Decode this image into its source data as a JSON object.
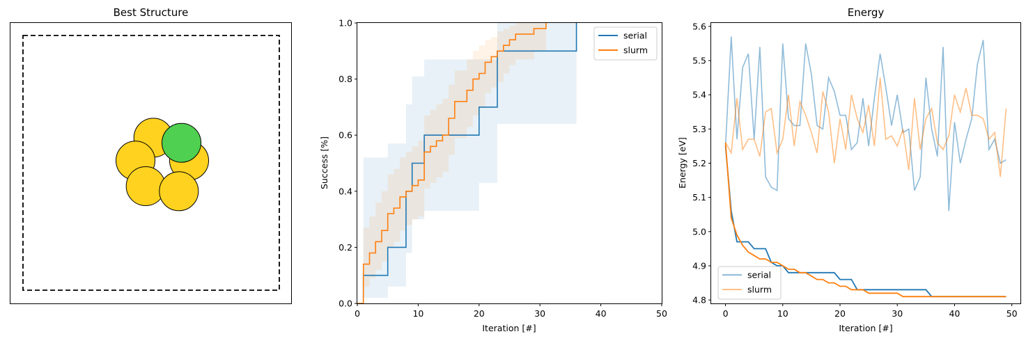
{
  "colors": {
    "serial": "#1f77b4",
    "slurm": "#ff7f0e",
    "gold_atom": "#ffd21f",
    "green_atom": "#50d050"
  },
  "chart_data": [
    {
      "type": "scatter",
      "title": "Best Structure",
      "box": "dashed square cell",
      "atoms": [
        {
          "color": "gold",
          "x": 5.6,
          "y": 6.5
        },
        {
          "color": "green",
          "x": 6.7,
          "y": 6.3
        },
        {
          "color": "gold",
          "x": 4.9,
          "y": 5.6
        },
        {
          "color": "gold",
          "x": 7.0,
          "y": 5.6
        },
        {
          "color": "gold",
          "x": 5.3,
          "y": 4.6
        },
        {
          "color": "gold",
          "x": 6.6,
          "y": 4.4
        }
      ],
      "xlim": [
        0,
        11
      ],
      "ylim": [
        0,
        11
      ],
      "axes_ticks": false
    },
    {
      "type": "line",
      "title": "",
      "xlabel": "Iteration [#]",
      "ylabel": "Success [%]",
      "xlim": [
        0,
        50
      ],
      "ylim": [
        0,
        1
      ],
      "xticks": [
        "0",
        "10",
        "20",
        "30",
        "40",
        "50"
      ],
      "yticks": [
        "0.0",
        "0.2",
        "0.4",
        "0.6",
        "0.8",
        "1.0"
      ],
      "legend_position": "top-right",
      "series": [
        {
          "name": "serial",
          "x": [
            0,
            1,
            5,
            8,
            9,
            11,
            20,
            23,
            36
          ],
          "y": [
            0.0,
            0.1,
            0.2,
            0.4,
            0.5,
            0.6,
            0.7,
            0.9,
            1.0
          ],
          "band_low": [
            0.0,
            0.02,
            0.06,
            0.18,
            0.3,
            0.33,
            0.43,
            0.64,
            1.0
          ],
          "band_high": [
            0.0,
            0.52,
            0.57,
            0.71,
            0.81,
            0.87,
            0.87,
            1.0,
            1.0
          ]
        },
        {
          "name": "slurm",
          "x": [
            0,
            1,
            2,
            3,
            4,
            5,
            6,
            7,
            8,
            9,
            10,
            11,
            12,
            13,
            14,
            15,
            16,
            17,
            18,
            19,
            20,
            21,
            22,
            23,
            24,
            25,
            26,
            27,
            28,
            29,
            30,
            31
          ],
          "y": [
            0.0,
            0.14,
            0.18,
            0.22,
            0.26,
            0.32,
            0.34,
            0.38,
            0.4,
            0.42,
            0.44,
            0.54,
            0.56,
            0.58,
            0.6,
            0.66,
            0.72,
            0.72,
            0.76,
            0.8,
            0.82,
            0.86,
            0.88,
            0.9,
            0.92,
            0.94,
            0.96,
            0.96,
            0.96,
            0.98,
            0.98,
            1.0
          ],
          "band_low": [
            0.0,
            0.06,
            0.09,
            0.12,
            0.15,
            0.2,
            0.22,
            0.26,
            0.28,
            0.3,
            0.31,
            0.41,
            0.43,
            0.45,
            0.47,
            0.53,
            0.59,
            0.59,
            0.63,
            0.67,
            0.7,
            0.75,
            0.77,
            0.79,
            0.82,
            0.85,
            0.87,
            0.87,
            0.87,
            0.9,
            0.9,
            1.0
          ],
          "band_high": [
            0.0,
            0.27,
            0.31,
            0.36,
            0.4,
            0.46,
            0.48,
            0.52,
            0.54,
            0.56,
            0.58,
            0.67,
            0.69,
            0.71,
            0.73,
            0.78,
            0.83,
            0.83,
            0.87,
            0.9,
            0.92,
            0.94,
            0.95,
            0.97,
            0.98,
            0.99,
            1.0,
            1.0,
            1.0,
            1.0,
            1.0,
            1.0
          ]
        }
      ]
    },
    {
      "type": "line",
      "title": "Energy",
      "xlabel": "Iteration [#]",
      "ylabel": "Energy [eV]",
      "xlim": [
        -2.5,
        51.5
      ],
      "ylim": [
        4.79,
        5.61
      ],
      "xticks": [
        "0",
        "10",
        "20",
        "30",
        "40",
        "50"
      ],
      "yticks": [
        "4.8",
        "4.9",
        "5.0",
        "5.1",
        "5.2",
        "5.3",
        "5.4",
        "5.5",
        "5.6"
      ],
      "legend_position": "bottom-left",
      "series": [
        {
          "name": "serial",
          "x": [
            0,
            1,
            2,
            3,
            4,
            5,
            6,
            7,
            8,
            9,
            10,
            11,
            12,
            13,
            14,
            15,
            16,
            17,
            18,
            19,
            20,
            21,
            22,
            23,
            24,
            25,
            26,
            27,
            28,
            29,
            30,
            31,
            32,
            33,
            34,
            35,
            36,
            37,
            38,
            39,
            40,
            41,
            42,
            43,
            44,
            45,
            46,
            47,
            48,
            49
          ],
          "raw": [
            5.25,
            5.57,
            5.27,
            5.48,
            5.52,
            5.27,
            5.54,
            5.16,
            5.13,
            5.12,
            5.55,
            5.33,
            5.31,
            5.31,
            5.55,
            5.46,
            5.31,
            5.3,
            5.45,
            5.41,
            5.34,
            5.34,
            5.24,
            5.26,
            5.39,
            5.25,
            5.39,
            5.52,
            5.42,
            5.31,
            5.4,
            5.29,
            5.3,
            5.12,
            5.16,
            5.45,
            5.3,
            5.22,
            5.54,
            5.06,
            5.32,
            5.2,
            5.27,
            5.33,
            5.49,
            5.56,
            5.24,
            5.27,
            5.2,
            5.21
          ],
          "best": [
            5.25,
            5.06,
            4.97,
            4.97,
            4.97,
            4.95,
            4.95,
            4.95,
            4.91,
            4.9,
            4.9,
            4.88,
            4.88,
            4.88,
            4.88,
            4.88,
            4.88,
            4.88,
            4.88,
            4.88,
            4.86,
            4.86,
            4.86,
            4.83,
            4.83,
            4.83,
            4.83,
            4.83,
            4.83,
            4.83,
            4.83,
            4.83,
            4.83,
            4.83,
            4.83,
            4.83,
            4.81,
            4.81,
            4.81,
            4.81,
            4.81,
            4.81,
            4.81,
            4.81,
            4.81,
            4.81,
            4.81,
            4.81,
            4.81,
            4.81
          ]
        },
        {
          "name": "slurm",
          "x": [
            0,
            1,
            2,
            3,
            4,
            5,
            6,
            7,
            8,
            9,
            10,
            11,
            12,
            13,
            14,
            15,
            16,
            17,
            18,
            19,
            20,
            21,
            22,
            23,
            24,
            25,
            26,
            27,
            28,
            29,
            30,
            31,
            32,
            33,
            34,
            35,
            36,
            37,
            38,
            39,
            40,
            41,
            42,
            43,
            44,
            45,
            46,
            47,
            48,
            49
          ],
          "raw": [
            5.26,
            5.23,
            5.39,
            5.24,
            5.27,
            5.27,
            5.22,
            5.35,
            5.36,
            5.23,
            5.27,
            5.4,
            5.25,
            5.38,
            5.34,
            5.29,
            5.23,
            5.41,
            5.35,
            5.2,
            5.33,
            5.24,
            5.4,
            5.33,
            5.29,
            5.37,
            5.25,
            5.45,
            5.27,
            5.28,
            5.25,
            5.3,
            5.18,
            5.39,
            5.24,
            5.33,
            5.36,
            5.26,
            5.24,
            5.28,
            5.4,
            5.35,
            5.42,
            5.34,
            5.34,
            5.33,
            5.27,
            5.29,
            5.16,
            5.36
          ],
          "best": [
            5.26,
            5.04,
            4.99,
            4.96,
            4.94,
            4.93,
            4.92,
            4.92,
            4.91,
            4.91,
            4.9,
            4.89,
            4.89,
            4.88,
            4.88,
            4.87,
            4.86,
            4.86,
            4.85,
            4.85,
            4.84,
            4.84,
            4.83,
            4.83,
            4.83,
            4.82,
            4.82,
            4.82,
            4.82,
            4.82,
            4.82,
            4.81,
            4.81,
            4.81,
            4.81,
            4.81,
            4.81,
            4.81,
            4.81,
            4.81,
            4.81,
            4.81,
            4.81,
            4.81,
            4.81,
            4.81,
            4.81,
            4.81,
            4.81,
            4.81
          ]
        }
      ]
    }
  ]
}
